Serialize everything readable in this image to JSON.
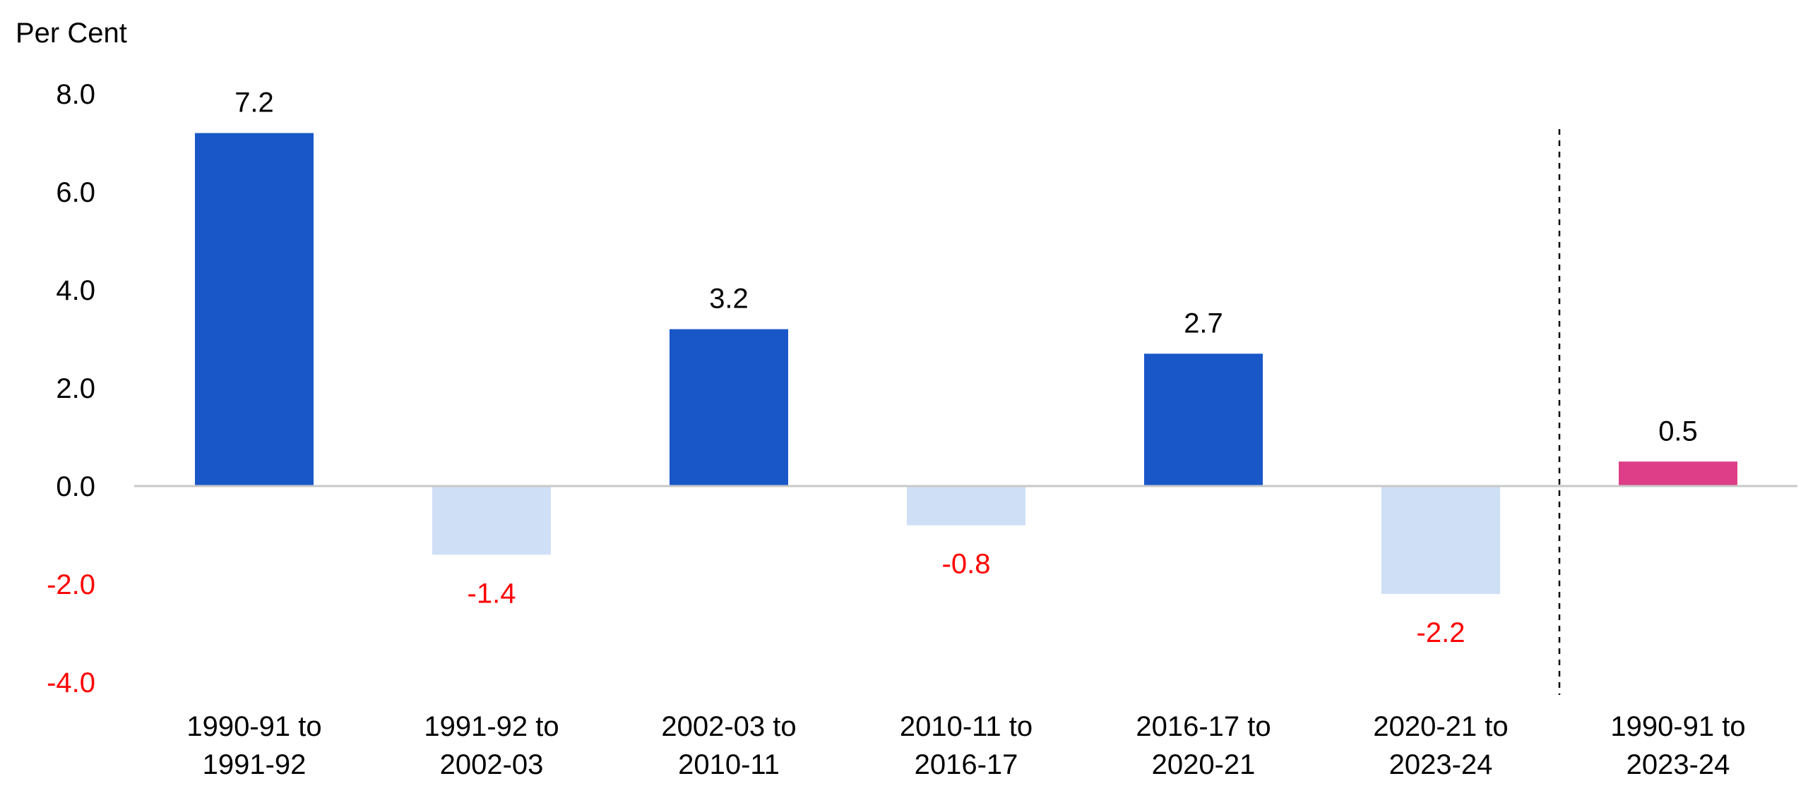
{
  "chart_data": {
    "type": "bar",
    "ylabel": "Per Cent",
    "ylim": [
      -4.0,
      8.0
    ],
    "yticks": [
      {
        "value": 8.0,
        "label": "8.0"
      },
      {
        "value": 6.0,
        "label": "6.0"
      },
      {
        "value": 4.0,
        "label": "4.0"
      },
      {
        "value": 2.0,
        "label": "2.0"
      },
      {
        "value": 0.0,
        "label": "0.0"
      },
      {
        "value": -2.0,
        "label": "-2.0"
      },
      {
        "value": -4.0,
        "label": "-4.0"
      }
    ],
    "categories": [
      [
        "1990-91 to",
        "1991-92"
      ],
      [
        "1991-92 to",
        "2002-03"
      ],
      [
        "2002-03 to",
        "2010-11"
      ],
      [
        "2010-11 to",
        "2016-17"
      ],
      [
        "2016-17 to",
        "2020-21"
      ],
      [
        "2020-21 to",
        "2023-24"
      ],
      [
        "1990-91 to",
        "2023-24"
      ]
    ],
    "values": [
      7.2,
      -1.4,
      3.2,
      -0.8,
      2.7,
      -2.2,
      0.5
    ],
    "data_labels": [
      "7.2",
      "-1.4",
      "3.2",
      "-0.8",
      "2.7",
      "-2.2",
      "0.5"
    ],
    "grid": false,
    "separator_before_index": 6
  },
  "colors": {
    "positive_bar": "#1957C9",
    "negative_bar": "#CFDFF6",
    "total_bar": "#DE3E87",
    "negative_text": "#FF0000",
    "text": "#000000",
    "baseline": "#C8C8C8",
    "separator": "#000000"
  }
}
